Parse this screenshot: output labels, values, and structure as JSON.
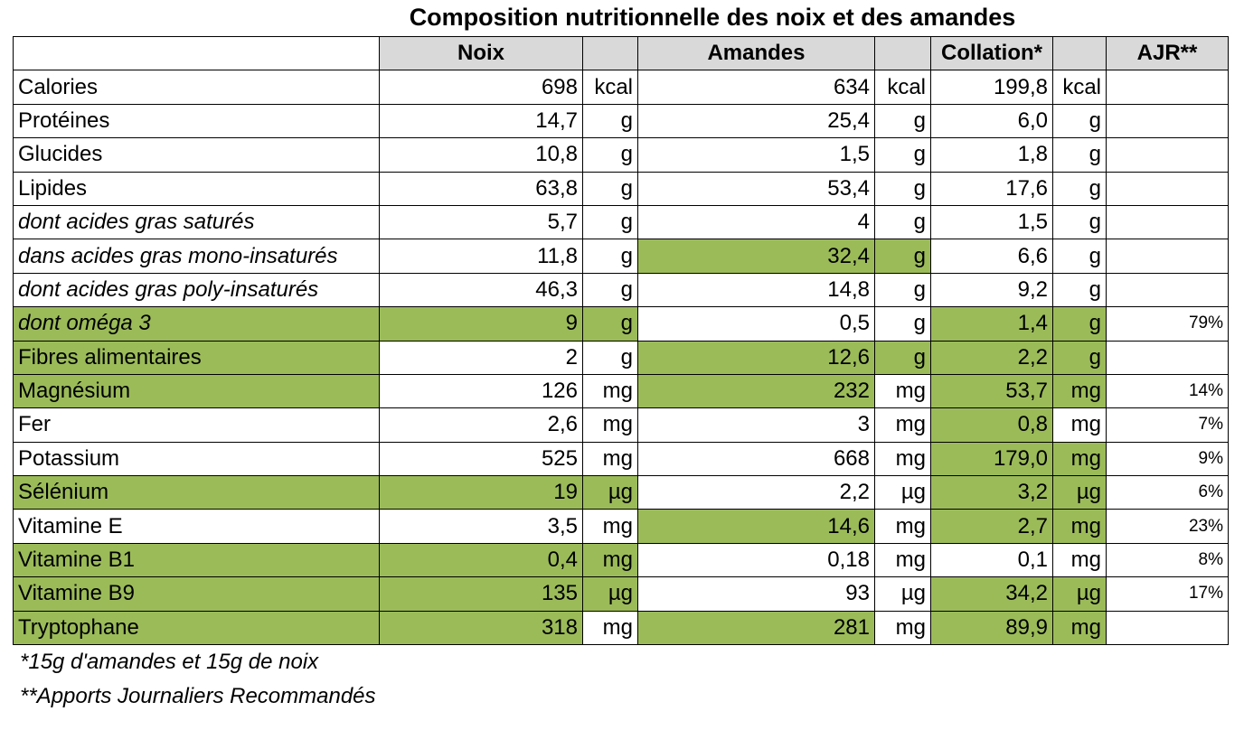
{
  "title": "Composition nutritionnelle des noix et des amandes",
  "header": {
    "noix": "Noix",
    "amandes": "Amandes",
    "collation": "Collation*",
    "ajr": "AJR**"
  },
  "colors": {
    "highlight": "#9bbb59",
    "header_bg": "#d9d9d9"
  },
  "rows": [
    {
      "label": "Calories",
      "noix": "698",
      "noix_unit": "kcal",
      "amandes": "634",
      "amandes_unit": "kcal",
      "collation": "199,8",
      "collation_unit": "kcal",
      "ajr": ""
    },
    {
      "label": "Protéines",
      "noix": "14,7",
      "noix_unit": "g",
      "amandes": "25,4",
      "amandes_unit": "g",
      "collation": "6,0",
      "collation_unit": "g",
      "ajr": ""
    },
    {
      "label": "Glucides",
      "noix": "10,8",
      "noix_unit": "g",
      "amandes": "1,5",
      "amandes_unit": "g",
      "collation": "1,8",
      "collation_unit": "g",
      "ajr": ""
    },
    {
      "label": "Lipides",
      "noix": "63,8",
      "noix_unit": "g",
      "amandes": "53,4",
      "amandes_unit": "g",
      "collation": "17,6",
      "collation_unit": "g",
      "ajr": ""
    },
    {
      "label": "dont acides gras saturés",
      "noix": "5,7",
      "noix_unit": "g",
      "amandes": "4",
      "amandes_unit": "g",
      "collation": "1,5",
      "collation_unit": "g",
      "ajr": ""
    },
    {
      "label": "dans acides gras mono-insaturés",
      "noix": "11,8",
      "noix_unit": "g",
      "amandes": "32,4",
      "amandes_unit": "g",
      "collation": "6,6",
      "collation_unit": "g",
      "ajr": ""
    },
    {
      "label": "dont acides gras poly-insaturés",
      "noix": "46,3",
      "noix_unit": "g",
      "amandes": "14,8",
      "amandes_unit": "g",
      "collation": "9,2",
      "collation_unit": "g",
      "ajr": ""
    },
    {
      "label": "dont oméga 3",
      "noix": "9",
      "noix_unit": "g",
      "amandes": "0,5",
      "amandes_unit": "g",
      "collation": "1,4",
      "collation_unit": "g",
      "ajr": "79%"
    },
    {
      "label": "Fibres alimentaires",
      "noix": "2",
      "noix_unit": "g",
      "amandes": "12,6",
      "amandes_unit": "g",
      "collation": "2,2",
      "collation_unit": "g",
      "ajr": ""
    },
    {
      "label": "Magnésium",
      "noix": "126",
      "noix_unit": "mg",
      "amandes": "232",
      "amandes_unit": "mg",
      "collation": "53,7",
      "collation_unit": "mg",
      "ajr": "14%"
    },
    {
      "label": "Fer",
      "noix": "2,6",
      "noix_unit": "mg",
      "amandes": "3",
      "amandes_unit": "mg",
      "collation": "0,8",
      "collation_unit": "mg",
      "ajr": "7%"
    },
    {
      "label": "Potassium",
      "noix": "525",
      "noix_unit": "mg",
      "amandes": "668",
      "amandes_unit": "mg",
      "collation": "179,0",
      "collation_unit": "mg",
      "ajr": "9%"
    },
    {
      "label": "Sélénium",
      "noix": "19",
      "noix_unit": "µg",
      "amandes": "2,2",
      "amandes_unit": "µg",
      "collation": "3,2",
      "collation_unit": "µg",
      "ajr": "6%"
    },
    {
      "label": "Vitamine E",
      "noix": "3,5",
      "noix_unit": "mg",
      "amandes": "14,6",
      "amandes_unit": "mg",
      "collation": "2,7",
      "collation_unit": "mg",
      "ajr": "23%"
    },
    {
      "label": "Vitamine B1",
      "noix": "0,4",
      "noix_unit": "mg",
      "amandes": "0,18",
      "amandes_unit": "mg",
      "collation": "0,1",
      "collation_unit": "mg",
      "ajr": "8%"
    },
    {
      "label": "Vitamine B9",
      "noix": "135",
      "noix_unit": "µg",
      "amandes": "93",
      "amandes_unit": "µg",
      "collation": "34,2",
      "collation_unit": "µg",
      "ajr": "17%"
    },
    {
      "label": "Tryptophane",
      "noix": "318",
      "noix_unit": "mg",
      "amandes": "281",
      "amandes_unit": "mg",
      "collation": "89,9",
      "collation_unit": "mg",
      "ajr": ""
    }
  ],
  "footnotes": [
    "*15g d'amandes et 15g de noix",
    "**Apports Journaliers Recommandés"
  ]
}
